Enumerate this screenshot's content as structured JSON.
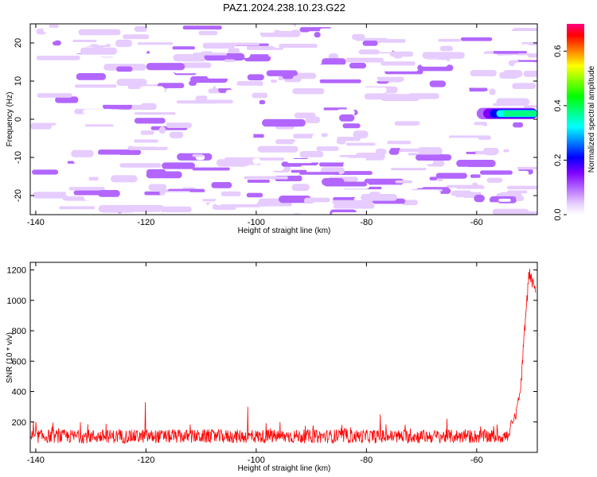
{
  "figure": {
    "title": "PAZ1.2024.238.10.23.G22"
  },
  "chart_data": [
    {
      "type": "heatmap",
      "title": "PAZ1.2024.238.10.23.G22",
      "xlabel": "Height of straight line (km)",
      "ylabel": "Frequency (Hz)",
      "xlim": [
        -141,
        -49
      ],
      "ylim": [
        -25,
        25
      ],
      "x_ticks": [
        -140,
        -120,
        -100,
        -80,
        -60
      ],
      "y_ticks": [
        -20,
        -10,
        0,
        10,
        20
      ],
      "grid": false,
      "colorbar": {
        "label": "Normalized spectral amplitude",
        "range": [
          0,
          0.7
        ],
        "ticks": [
          0,
          0.2,
          0.4,
          0.6
        ],
        "colors": [
          "#ffffff",
          "#e6ccff",
          "#b266ff",
          "#8000ff",
          "#0000ff",
          "#0080ff",
          "#00ffff",
          "#00ff80",
          "#00ff00",
          "#80ff00",
          "#ffff00",
          "#ff8000",
          "#ff0000",
          "#ff0080"
        ]
      },
      "features": [
        {
          "x_range": [
            -141,
            -51
          ],
          "y_range": [
            -25,
            25
          ],
          "amplitude_range": [
            0.0,
            0.12
          ]
        },
        {
          "x_range": [
            -60,
            -49
          ],
          "y_range": [
            0,
            3
          ],
          "amplitude_peak": 0.35
        }
      ]
    },
    {
      "type": "line",
      "xlabel": "Height of straight line (km)",
      "ylabel": "SNR (10 * v/v)",
      "xlim": [
        -141,
        -49
      ],
      "ylim": [
        0,
        1250
      ],
      "x_ticks": [
        -140,
        -120,
        -100,
        -80,
        -60
      ],
      "y_ticks": [
        200,
        400,
        600,
        800,
        1000,
        1200
      ],
      "grid": false,
      "series": [
        {
          "color": "#ff0000",
          "baseline_mean": 105,
          "baseline_noise": 45,
          "spikes": [
            {
              "x": -120.1,
              "y": 330
            },
            {
              "x": -101.5,
              "y": 300
            },
            {
              "x": -77.5,
              "y": 250
            }
          ],
          "rise_start": -54,
          "rise_points": [
            {
              "x": -54,
              "y": 150
            },
            {
              "x": -53,
              "y": 230
            },
            {
              "x": -52,
              "y": 420
            },
            {
              "x": -51.5,
              "y": 700
            },
            {
              "x": -51,
              "y": 950
            },
            {
              "x": -50.5,
              "y": 1180
            },
            {
              "x": -50,
              "y": 1130
            },
            {
              "x": -49.3,
              "y": 1050
            }
          ]
        }
      ]
    }
  ]
}
